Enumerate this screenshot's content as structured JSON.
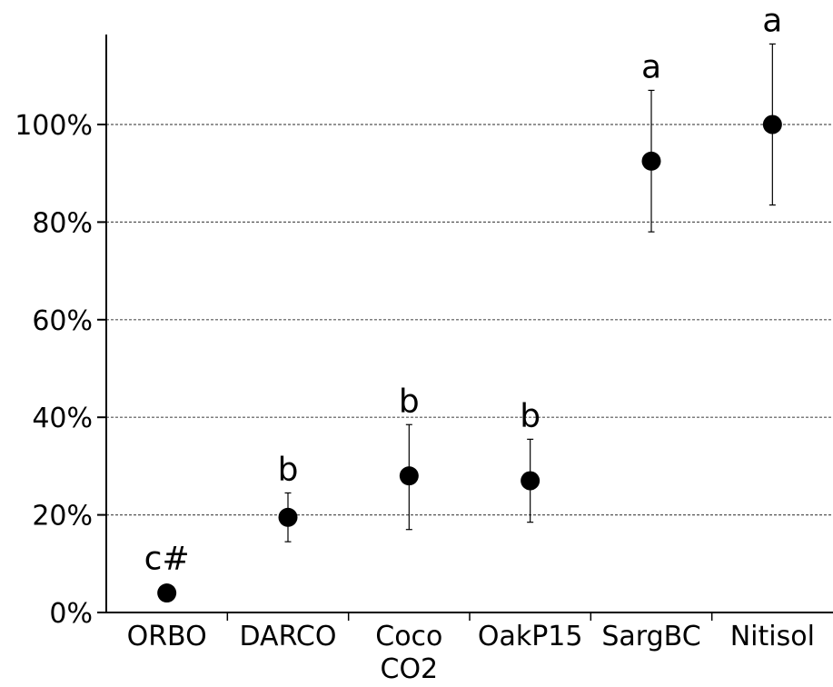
{
  "chart_data": {
    "type": "scatter",
    "title": "",
    "xlabel": "",
    "ylabel": "",
    "categories": [
      "ORBO",
      "DARCO",
      "Coco CO2",
      "OakP15",
      "SargBC",
      "Nitisol"
    ],
    "category_lines": [
      [
        "ORBO"
      ],
      [
        "DARCO"
      ],
      [
        "Coco",
        "CO2"
      ],
      [
        "OakP15"
      ],
      [
        "SargBC"
      ],
      [
        "Nitisol"
      ]
    ],
    "values": [
      4,
      19.5,
      28,
      27,
      92.5,
      100
    ],
    "error_low": [
      null,
      14.5,
      17,
      18.5,
      78,
      83.5
    ],
    "error_high": [
      null,
      24.5,
      38.5,
      35.5,
      107,
      116.5
    ],
    "significance_labels": [
      "c#",
      "b",
      "b",
      "b",
      "a",
      "a"
    ],
    "yticks": [
      0,
      20,
      40,
      60,
      80,
      100
    ],
    "ytick_labels": [
      "0%",
      "20%",
      "40%",
      "60%",
      "80%",
      "100%"
    ],
    "ylim": [
      0,
      118
    ],
    "grid": "horizontal dotted",
    "legend": "none",
    "marker_color": "#000000"
  }
}
